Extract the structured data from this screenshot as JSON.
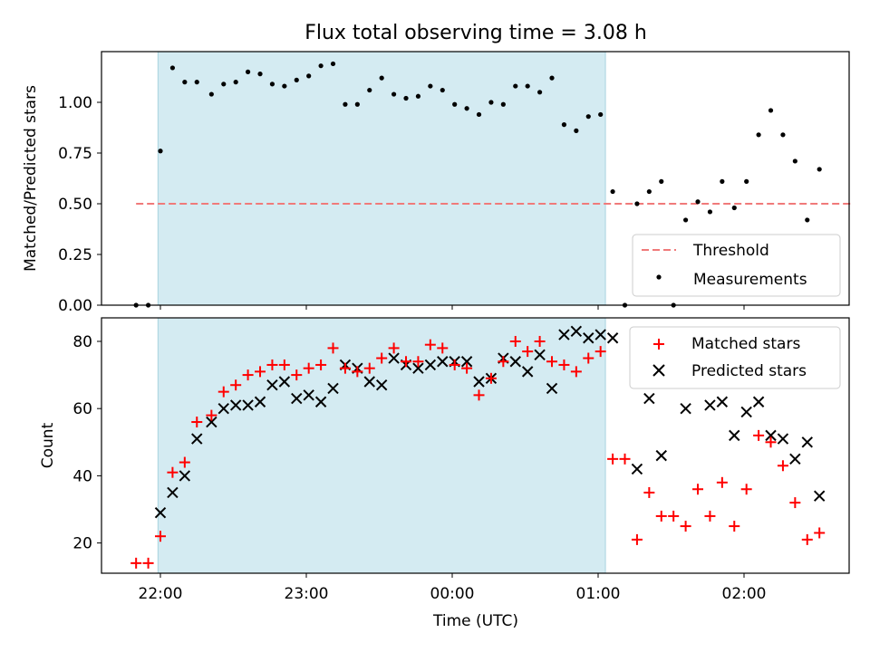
{
  "chart_data": {
    "title": "Flux total observing time = 3.08 h",
    "shaded_interval": [
      "21:59",
      "01:03"
    ],
    "x_ticks": [
      "22:00",
      "23:00",
      "00:00",
      "01:00",
      "02:00"
    ],
    "xlabel": "Time (UTC)",
    "panels": [
      {
        "type": "scatter",
        "ylabel": "Matched/Predicted stars",
        "ylim": [
          0.0,
          1.25
        ],
        "y_ticks": [
          "0.00",
          "0.25",
          "0.50",
          "0.75",
          "1.00"
        ],
        "legend": {
          "placement": "lower-right",
          "entries": [
            "Threshold",
            "Measurements"
          ]
        },
        "threshold": {
          "name": "Threshold",
          "value": 0.5,
          "x_range": [
            "21:50",
            "02:45"
          ],
          "color": "#f07a7a",
          "style": "dashed"
        },
        "series": [
          {
            "name": "Measurements",
            "color": "#000000",
            "marker": "dot",
            "points": [
              [
                "21:50",
                0.0
              ],
              [
                "21:55",
                0.0
              ],
              [
                "22:00",
                0.76
              ],
              [
                "22:05",
                1.17
              ],
              [
                "22:10",
                1.1
              ],
              [
                "22:15",
                1.1
              ],
              [
                "22:21",
                1.04
              ],
              [
                "22:26",
                1.09
              ],
              [
                "22:31",
                1.1
              ],
              [
                "22:36",
                1.15
              ],
              [
                "22:41",
                1.14
              ],
              [
                "22:46",
                1.09
              ],
              [
                "22:51",
                1.08
              ],
              [
                "22:56",
                1.11
              ],
              [
                "23:01",
                1.13
              ],
              [
                "23:06",
                1.18
              ],
              [
                "23:11",
                1.19
              ],
              [
                "23:16",
                0.99
              ],
              [
                "23:21",
                0.99
              ],
              [
                "23:26",
                1.06
              ],
              [
                "23:31",
                1.12
              ],
              [
                "23:36",
                1.04
              ],
              [
                "23:41",
                1.02
              ],
              [
                "23:46",
                1.03
              ],
              [
                "23:51",
                1.08
              ],
              [
                "23:56",
                1.06
              ],
              [
                "00:01",
                0.99
              ],
              [
                "00:06",
                0.97
              ],
              [
                "00:11",
                0.94
              ],
              [
                "00:16",
                1.0
              ],
              [
                "00:21",
                0.99
              ],
              [
                "00:26",
                1.08
              ],
              [
                "00:31",
                1.08
              ],
              [
                "00:36",
                1.05
              ],
              [
                "00:41",
                1.12
              ],
              [
                "00:46",
                0.89
              ],
              [
                "00:51",
                0.86
              ],
              [
                "00:56",
                0.93
              ],
              [
                "01:01",
                0.94
              ],
              [
                "01:06",
                0.56
              ],
              [
                "01:11",
                0.0
              ],
              [
                "01:16",
                0.5
              ],
              [
                "01:21",
                0.56
              ],
              [
                "01:26",
                0.61
              ],
              [
                "01:31",
                0.0
              ],
              [
                "01:36",
                0.42
              ],
              [
                "01:41",
                0.51
              ],
              [
                "01:46",
                0.46
              ],
              [
                "01:51",
                0.61
              ],
              [
                "01:56",
                0.48
              ],
              [
                "02:01",
                0.61
              ],
              [
                "02:06",
                0.84
              ],
              [
                "02:11",
                0.96
              ],
              [
                "02:16",
                0.84
              ],
              [
                "02:21",
                0.71
              ],
              [
                "02:26",
                0.42
              ],
              [
                "02:31",
                0.67
              ]
            ]
          }
        ]
      },
      {
        "type": "scatter",
        "ylabel": "Count",
        "ylim": [
          11,
          87
        ],
        "y_ticks": [
          "20",
          "40",
          "60",
          "80"
        ],
        "legend": {
          "placement": "top-right",
          "entries": [
            "Matched stars",
            "Predicted stars"
          ]
        },
        "series": [
          {
            "name": "Matched stars",
            "color": "#ff0000",
            "marker": "plus",
            "points": [
              [
                "21:50",
                14
              ],
              [
                "21:55",
                14
              ],
              [
                "22:00",
                22
              ],
              [
                "22:05",
                41
              ],
              [
                "22:10",
                44
              ],
              [
                "22:15",
                56
              ],
              [
                "22:21",
                58
              ],
              [
                "22:26",
                65
              ],
              [
                "22:31",
                67
              ],
              [
                "22:36",
                70
              ],
              [
                "22:41",
                71
              ],
              [
                "22:46",
                73
              ],
              [
                "22:51",
                73
              ],
              [
                "22:56",
                70
              ],
              [
                "23:01",
                72
              ],
              [
                "23:06",
                73
              ],
              [
                "23:11",
                78
              ],
              [
                "23:16",
                72
              ],
              [
                "23:21",
                71
              ],
              [
                "23:26",
                72
              ],
              [
                "23:31",
                75
              ],
              [
                "23:36",
                78
              ],
              [
                "23:41",
                74
              ],
              [
                "23:46",
                74
              ],
              [
                "23:51",
                79
              ],
              [
                "23:56",
                78
              ],
              [
                "00:01",
                73
              ],
              [
                "00:06",
                72
              ],
              [
                "00:11",
                64
              ],
              [
                "00:16",
                69
              ],
              [
                "00:21",
                74
              ],
              [
                "00:26",
                80
              ],
              [
                "00:31",
                77
              ],
              [
                "00:36",
                80
              ],
              [
                "00:41",
                74
              ],
              [
                "00:46",
                73
              ],
              [
                "00:51",
                71
              ],
              [
                "00:56",
                75
              ],
              [
                "01:01",
                77
              ],
              [
                "01:06",
                45
              ],
              [
                "01:11",
                45
              ],
              [
                "01:16",
                21
              ],
              [
                "01:21",
                35
              ],
              [
                "01:26",
                28
              ],
              [
                "01:31",
                28
              ],
              [
                "01:36",
                25
              ],
              [
                "01:41",
                36
              ],
              [
                "01:46",
                28
              ],
              [
                "01:51",
                38
              ],
              [
                "01:56",
                25
              ],
              [
                "02:01",
                36
              ],
              [
                "02:06",
                52
              ],
              [
                "02:11",
                50
              ],
              [
                "02:16",
                43
              ],
              [
                "02:21",
                32
              ],
              [
                "02:26",
                21
              ],
              [
                "02:31",
                23
              ]
            ]
          },
          {
            "name": "Predicted stars",
            "color": "#000000",
            "marker": "x",
            "points": [
              [
                "22:00",
                29
              ],
              [
                "22:05",
                35
              ],
              [
                "22:10",
                40
              ],
              [
                "22:15",
                51
              ],
              [
                "22:21",
                56
              ],
              [
                "22:26",
                60
              ],
              [
                "22:31",
                61
              ],
              [
                "22:36",
                61
              ],
              [
                "22:41",
                62
              ],
              [
                "22:46",
                67
              ],
              [
                "22:51",
                68
              ],
              [
                "22:56",
                63
              ],
              [
                "23:01",
                64
              ],
              [
                "23:06",
                62
              ],
              [
                "23:11",
                66
              ],
              [
                "23:16",
                73
              ],
              [
                "23:21",
                72
              ],
              [
                "23:26",
                68
              ],
              [
                "23:31",
                67
              ],
              [
                "23:36",
                75
              ],
              [
                "23:41",
                73
              ],
              [
                "23:46",
                72
              ],
              [
                "23:51",
                73
              ],
              [
                "23:56",
                74
              ],
              [
                "00:01",
                74
              ],
              [
                "00:06",
                74
              ],
              [
                "00:11",
                68
              ],
              [
                "00:16",
                69
              ],
              [
                "00:21",
                75
              ],
              [
                "00:26",
                74
              ],
              [
                "00:31",
                71
              ],
              [
                "00:36",
                76
              ],
              [
                "00:41",
                66
              ],
              [
                "00:46",
                82
              ],
              [
                "00:51",
                83
              ],
              [
                "00:56",
                81
              ],
              [
                "01:01",
                82
              ],
              [
                "01:06",
                81
              ],
              [
                "01:16",
                42
              ],
              [
                "01:21",
                63
              ],
              [
                "01:26",
                46
              ],
              [
                "01:36",
                60
              ],
              [
                "01:46",
                61
              ],
              [
                "01:51",
                62
              ],
              [
                "01:56",
                52
              ],
              [
                "02:01",
                59
              ],
              [
                "02:06",
                62
              ],
              [
                "02:11",
                52
              ],
              [
                "02:16",
                51
              ],
              [
                "02:21",
                45
              ],
              [
                "02:26",
                50
              ],
              [
                "02:31",
                34
              ]
            ]
          }
        ]
      }
    ],
    "colors": {
      "shade": "#d4ebf2",
      "shade_edge": "#a9d3df"
    }
  }
}
